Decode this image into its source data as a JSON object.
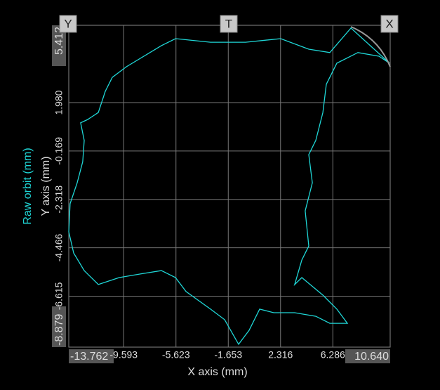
{
  "chart_data": {
    "type": "line",
    "xlabel": "X axis (mm)",
    "ylabel": "Y axis (mm)",
    "xlim": [
      -13.762,
      10.64
    ],
    "ylim": [
      -8.879,
      5.412
    ],
    "xticks": [
      -13.762,
      -9.593,
      -5.623,
      -1.653,
      2.316,
      6.286,
      {
        "value": 10.64,
        "label": "10.640"
      }
    ],
    "yticks": [
      -8.879,
      -6.615,
      -4.466,
      -2.318,
      -0.169,
      {
        "value": 1.98,
        "label": "1.980"
      },
      5.412
    ],
    "grid": true,
    "x": [
      10.59,
      7.66,
      6.06,
      4.46,
      2.33,
      -0.34,
      -3.0,
      -5.66,
      -6.73,
      -9.39,
      -10.46,
      -10.99,
      -11.52,
      -12.32,
      -12.86,
      -12.59,
      -12.7,
      -13.12,
      -13.66,
      -13.76,
      -13.39,
      -12.59,
      -11.52,
      -9.93,
      -8.33,
      -6.73,
      -5.66,
      -4.86,
      -3.0,
      -1.93,
      -0.87,
      -0.07,
      0.73,
      1.8,
      3.39,
      4.99,
      6.06,
      7.39,
      6.59,
      5.53,
      3.93,
      3.39,
      3.93,
      4.46,
      4.19,
      4.73,
      4.46,
      4.99,
      5.53,
      5.79,
      6.59,
      8.19,
      9.79,
      10.59
    ],
    "series": [
      {
        "name": "Raw orbit (mm)",
        "color": "#1fd6d6",
        "values": [
          3.73,
          5.29,
          4.2,
          4.35,
          4.82,
          4.66,
          4.66,
          4.82,
          4.51,
          3.57,
          3.1,
          2.48,
          1.54,
          1.23,
          1.08,
          0.3,
          -0.64,
          -1.58,
          -2.51,
          -3.76,
          -4.7,
          -5.48,
          -6.1,
          -5.79,
          -5.63,
          -5.48,
          -5.79,
          -6.41,
          -7.19,
          -7.66,
          -8.75,
          -8.13,
          -7.19,
          -7.35,
          -7.35,
          -7.51,
          -7.82,
          -7.82,
          -7.19,
          -6.57,
          -5.79,
          -6.1,
          -5.01,
          -4.39,
          -2.83,
          -1.58,
          -0.33,
          0.3,
          1.54,
          2.79,
          3.73,
          4.2,
          4.04,
          3.73
        ]
      }
    ]
  },
  "controls": [
    "Y",
    "T",
    "X"
  ]
}
